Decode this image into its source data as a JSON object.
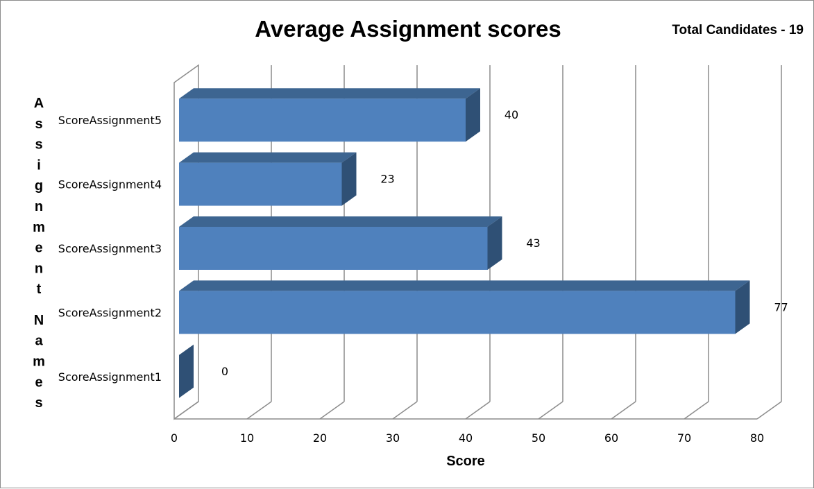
{
  "chart_data": {
    "type": "bar",
    "orientation": "horizontal",
    "style": "3d",
    "title": "Average Assignment scores",
    "subtitle": "Total Candidates - 19",
    "xlabel": "Score",
    "ylabel": "Assignment Names",
    "xlim": [
      0,
      80
    ],
    "x_ticks": [
      0,
      10,
      20,
      30,
      40,
      50,
      60,
      70,
      80
    ],
    "categories": [
      "ScoreAssignment1",
      "ScoreAssignment2",
      "ScoreAssignment3",
      "ScoreAssignment4",
      "ScoreAssignment5"
    ],
    "values": [
      0,
      77,
      43,
      23,
      40
    ],
    "data_labels": [
      "0",
      "77",
      "43",
      "23",
      "40"
    ],
    "grid": "vertical",
    "legend": "none",
    "colors": {
      "bar_front": "#4f81bd",
      "bar_top": "#3d6591",
      "bar_side": "#2f5075",
      "gridline": "#8c8c8c",
      "text": "#000000"
    }
  }
}
